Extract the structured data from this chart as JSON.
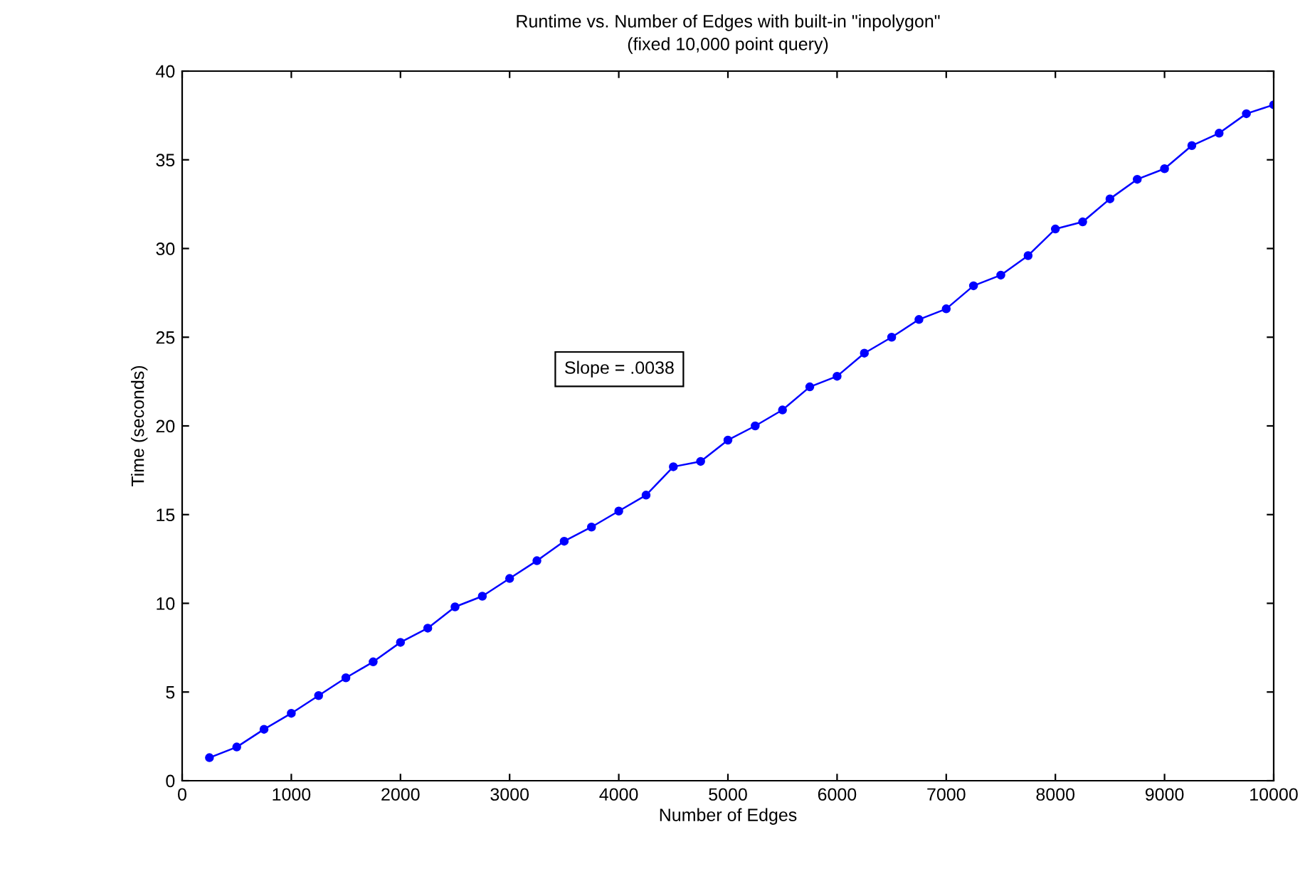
{
  "chart_data": {
    "type": "line",
    "title": "Runtime vs. Number of Edges with built-in \"inpolygon\"",
    "subtitle": "(fixed 10,000 point query)",
    "xlabel": "Number of Edges",
    "ylabel": "Time (seconds)",
    "x": [
      250,
      500,
      750,
      1000,
      1250,
      1500,
      1750,
      2000,
      2250,
      2500,
      2750,
      3000,
      3250,
      3500,
      3750,
      4000,
      4250,
      4500,
      4750,
      5000,
      5250,
      5500,
      5750,
      6000,
      6250,
      6500,
      6750,
      7000,
      7250,
      7500,
      7750,
      8000,
      8250,
      8500,
      8750,
      9000,
      9250,
      9500,
      9750,
      10000
    ],
    "series": [
      {
        "color": "#0000ff",
        "values": [
          1.3,
          1.9,
          2.9,
          3.8,
          4.8,
          5.8,
          6.7,
          7.8,
          8.6,
          9.8,
          10.4,
          11.4,
          12.4,
          13.5,
          14.3,
          15.2,
          16.1,
          17.7,
          18.0,
          19.2,
          20.0,
          20.9,
          22.2,
          22.8,
          24.1,
          25.0,
          26.0,
          26.6,
          27.9,
          28.5,
          29.6,
          31.1,
          31.5,
          32.8,
          33.9,
          34.5,
          35.8,
          36.5,
          37.6,
          38.1
        ]
      }
    ],
    "annotations": [
      "Slope = .0038"
    ],
    "xlim": [
      0,
      10000
    ],
    "xticks": [
      0,
      1000,
      2000,
      3000,
      4000,
      5000,
      6000,
      7000,
      8000,
      9000,
      10000
    ],
    "ylim": [
      0,
      40
    ],
    "yticks": [
      0,
      5,
      10,
      15,
      20,
      25,
      30,
      35,
      40
    ],
    "grid": false,
    "legend": false,
    "marker": "circle",
    "line_style": "solid"
  }
}
